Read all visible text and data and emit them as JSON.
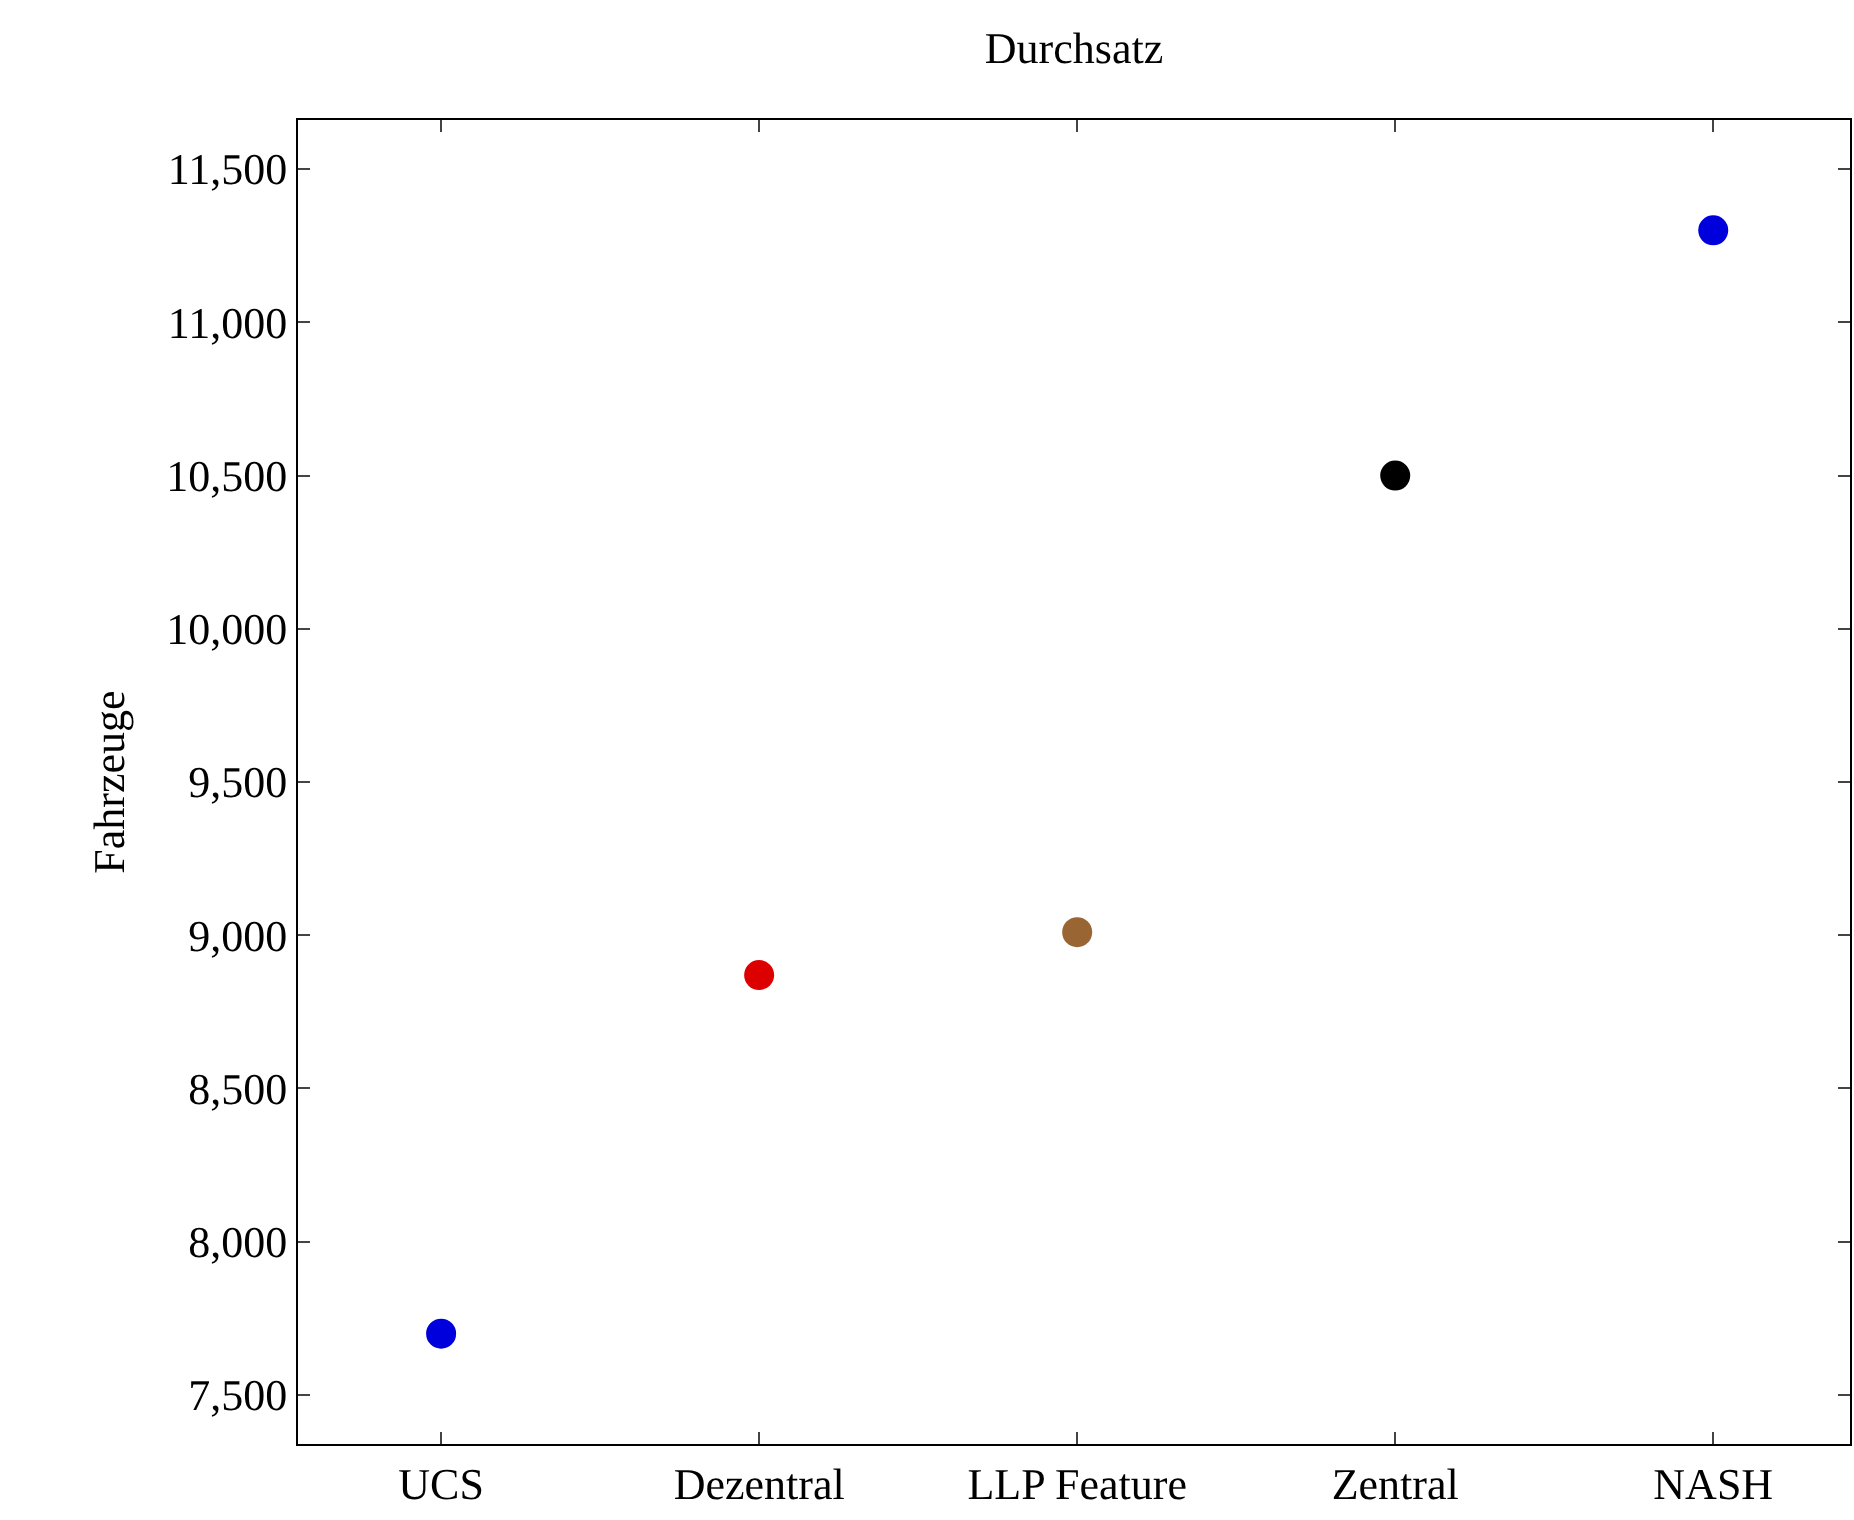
{
  "chart_data": {
    "type": "scatter",
    "title": "Durchsatz",
    "ylabel": "Fahrzeuge",
    "categories": [
      "UCS",
      "Dezentral",
      "LLP Feature",
      "Zentral",
      "NASH"
    ],
    "values": [
      7700,
      8870,
      9010,
      10500,
      11300
    ],
    "colors": [
      "#0000dd",
      "#dd0000",
      "#996633",
      "#000000",
      "#0000dd"
    ],
    "marker": "circle",
    "ylim": [
      7340,
      11660
    ],
    "yticks": [
      {
        "value": 7500,
        "label": "7,500"
      },
      {
        "value": 8000,
        "label": "8,000"
      },
      {
        "value": 8500,
        "label": "8,500"
      },
      {
        "value": 9000,
        "label": "9,000"
      },
      {
        "value": 9500,
        "label": "9,500"
      },
      {
        "value": 10000,
        "label": "10,000"
      },
      {
        "value": 10500,
        "label": "10,500"
      },
      {
        "value": 11000,
        "label": "11,000"
      },
      {
        "value": 11500,
        "label": "11,500"
      }
    ]
  }
}
